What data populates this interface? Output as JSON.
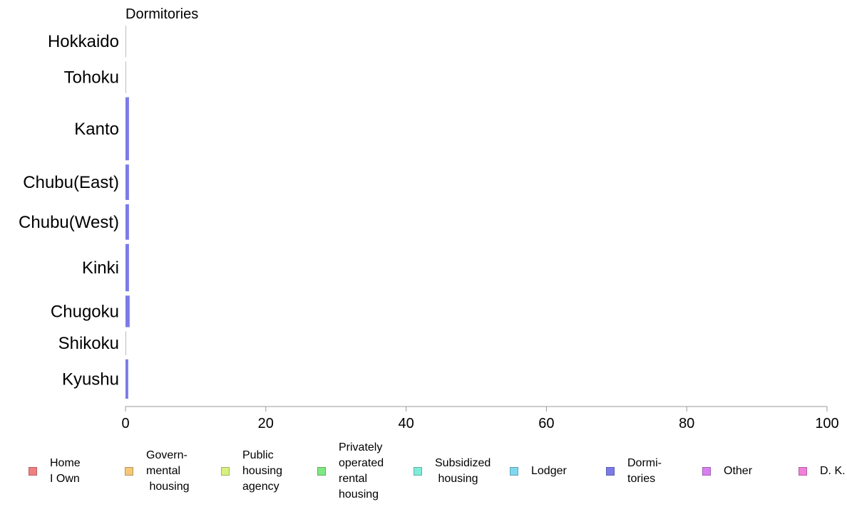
{
  "chart_data": {
    "type": "bar",
    "orientation": "horizontal",
    "title": "Dormitories",
    "categories": [
      "Hokkaido",
      "Tohoku",
      "Kanto",
      "Chubu(East)",
      "Chubu(West)",
      "Kinki",
      "Chugoku",
      "Shikoku",
      "Kyushu"
    ],
    "category_weights": [
      0.8,
      0.8,
      1.6,
      0.9,
      0.9,
      1.2,
      0.8,
      0.6,
      1.0
    ],
    "series": [
      {
        "name": "Dormitories",
        "color": "#7b7be8",
        "values": [
          0.1,
          0.1,
          0.5,
          0.5,
          0.5,
          0.5,
          0.6,
          0.1,
          0.4
        ]
      }
    ],
    "xlim": [
      0,
      100
    ],
    "xticks": [
      "0",
      "20",
      "40",
      "60",
      "80",
      "100"
    ],
    "xtick_values": [
      0,
      20,
      40,
      60,
      80,
      100
    ],
    "grid": false,
    "legend_position": "bottom",
    "legend": [
      {
        "lines": [
          "Home",
          "I Own"
        ],
        "color": "#f08080"
      },
      {
        "lines": [
          "Govern-",
          "mental",
          " housing"
        ],
        "color": "#f5c878"
      },
      {
        "lines": [
          "Public",
          "housing",
          "agency"
        ],
        "color": "#d8f080"
      },
      {
        "lines": [
          "Privately",
          "operated",
          "rental",
          "housing"
        ],
        "color": "#80e880"
      },
      {
        "lines": [
          "Subsidized",
          " housing"
        ],
        "color": "#80ecd8"
      },
      {
        "lines": [
          "Lodger"
        ],
        "color": "#80d8f0"
      },
      {
        "lines": [
          "Dormi-",
          "tories"
        ],
        "color": "#7b7be8"
      },
      {
        "lines": [
          "Other"
        ],
        "color": "#d880f0"
      },
      {
        "lines": [
          "D. K."
        ],
        "color": "#f080d8"
      }
    ]
  }
}
